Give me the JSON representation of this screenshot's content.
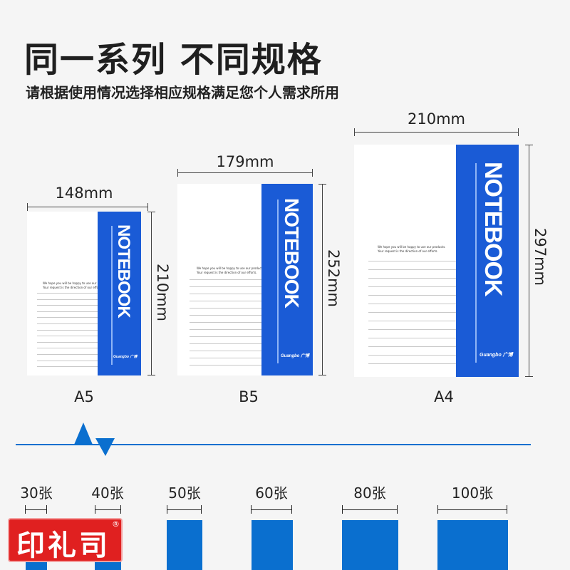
{
  "header": {
    "title": "同一系列 不同规格",
    "subtitle": "请根据使用情况选择相应规格满足您个人需求所用"
  },
  "notebook": {
    "cover_text": "NOTEBOOK",
    "message_line1": "We hope you will be happy to use our products.",
    "message_line2": "Your request is the direction of our efforts.",
    "brand": "Guangbo 广博"
  },
  "sizes": [
    {
      "name": "A5",
      "width": "148mm",
      "height": "210mm"
    },
    {
      "name": "B5",
      "width": "179mm",
      "height": "252mm"
    },
    {
      "name": "A4",
      "width": "210mm",
      "height": "297mm"
    }
  ],
  "page_counts": [
    "30张",
    "40张",
    "50张",
    "60张",
    "80张",
    "100张"
  ],
  "logo": {
    "text": "印礼司",
    "mark": "®"
  },
  "colors": {
    "cover_blue": "#1a5bd6",
    "bar_blue": "#0a6fcf",
    "logo_red": "#e02020",
    "background": "#f5f5f5"
  }
}
